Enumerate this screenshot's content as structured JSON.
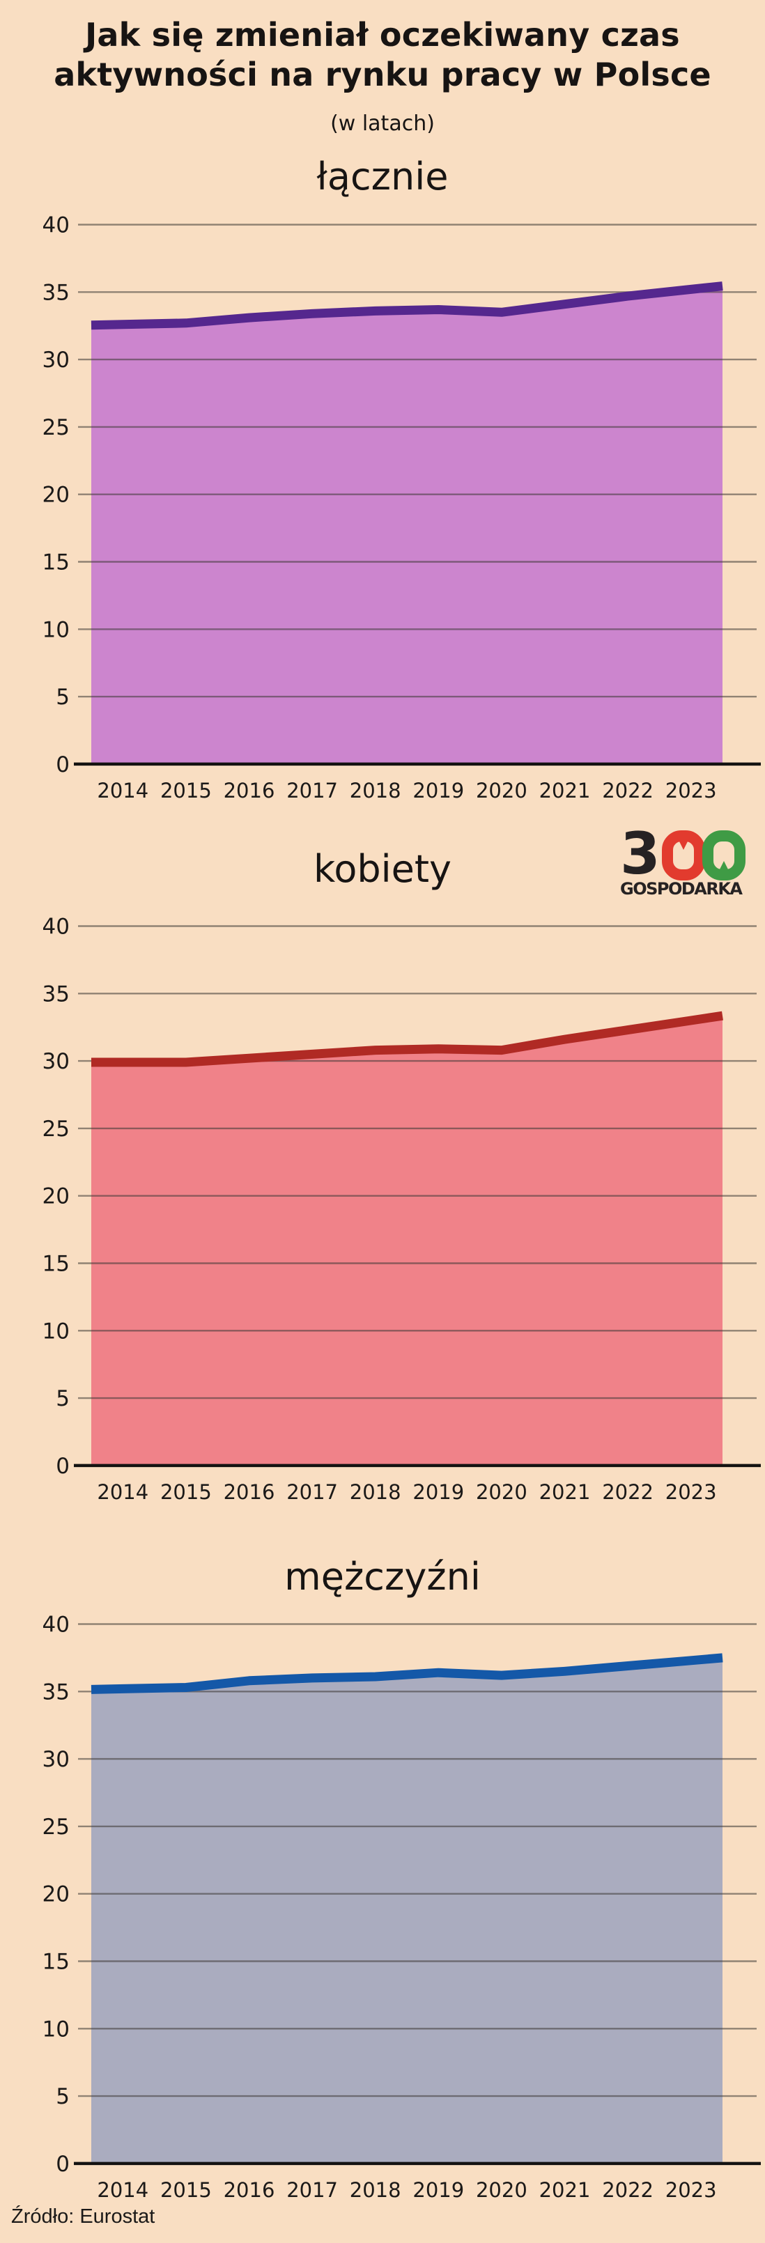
{
  "page": {
    "background": "#f9dec2"
  },
  "header": {
    "title": "Jak się zmieniał oczekiwany czas aktywności na rynku pracy w Polsce",
    "subtitle": "(w latach)"
  },
  "logo": {
    "digits": [
      "3",
      "0",
      "0"
    ],
    "wordmark": "GOSPODARKA",
    "color_black": "#262223",
    "color_red": "#e23b2e",
    "color_green": "#3f9b45"
  },
  "source": {
    "label": "Źródło: Eurostat"
  },
  "chart_data": [
    {
      "type": "area",
      "title": "łącznie",
      "categories": [
        "2014",
        "2015",
        "2016",
        "2017",
        "2018",
        "2019",
        "2020",
        "2021",
        "2022",
        "2023"
      ],
      "values": [
        32.6,
        32.7,
        33.1,
        33.4,
        33.6,
        33.7,
        33.5,
        34.1,
        34.7,
        35.2
      ],
      "ylim": [
        0,
        40
      ],
      "ytick_step": 5,
      "grid": true,
      "legend": "none",
      "line_color": "#55278e",
      "fill_color": "#cc85ce"
    },
    {
      "type": "area",
      "title": "kobiety",
      "categories": [
        "2014",
        "2015",
        "2016",
        "2017",
        "2018",
        "2019",
        "2020",
        "2021",
        "2022",
        "2023"
      ],
      "values": [
        29.9,
        29.9,
        30.2,
        30.5,
        30.8,
        30.9,
        30.8,
        31.6,
        32.3,
        33.0
      ],
      "ylim": [
        0,
        40
      ],
      "ytick_step": 5,
      "grid": true,
      "legend": "none",
      "line_color": "#b02a24",
      "fill_color": "#f08289"
    },
    {
      "type": "area",
      "title": "mężczyźni",
      "categories": [
        "2014",
        "2015",
        "2016",
        "2017",
        "2018",
        "2019",
        "2020",
        "2021",
        "2022",
        "2023"
      ],
      "values": [
        35.2,
        35.3,
        35.8,
        36.0,
        36.1,
        36.4,
        36.2,
        36.5,
        36.9,
        37.3
      ],
      "ylim": [
        0,
        40
      ],
      "ytick_step": 5,
      "grid": true,
      "legend": "none",
      "line_color": "#1458a8",
      "fill_color": "#aaacbf"
    }
  ]
}
